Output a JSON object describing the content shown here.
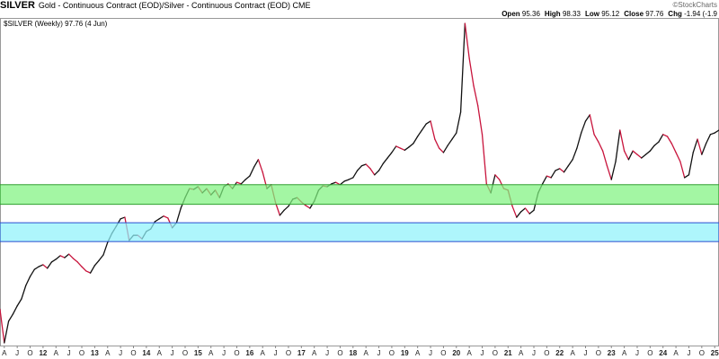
{
  "chart_data": {
    "type": "line",
    "title": "SILVER",
    "subtitle": "Gold - Continuous Contract (EOD)/Silver - Continuous Contract (EOD) CME",
    "brand": "©StockCharts",
    "stats": [
      {
        "label": "Open",
        "value": "95.36"
      },
      {
        "label": "High",
        "value": "98.33"
      },
      {
        "label": "Low",
        "value": "95.12"
      },
      {
        "label": "Close",
        "value": "97.76"
      },
      {
        "label": "Chg",
        "value": "-1.94 (-1.9"
      }
    ],
    "series_label": "$SILVER (Weekly) 97.76 (4 Jun)",
    "color_up": "#111111",
    "color_down": "#c8143c",
    "bands": [
      {
        "from": 79,
        "to": 84,
        "color": "#7ff27f",
        "border": "#2e9e2e"
      },
      {
        "from": 69.5,
        "to": 74.3,
        "color": "#8ff3fb",
        "border": "#2a4fd0"
      }
    ],
    "xlim": [
      "2011-03",
      "2025-02"
    ],
    "ylim": [
      43,
      126.5
    ],
    "x": [
      "2011-03",
      "2011-04",
      "2011-05",
      "2011-06",
      "2011-07",
      "2011-08",
      "2011-09",
      "2011-10",
      "2011-11",
      "2011-12",
      "2012-01",
      "2012-02",
      "2012-03",
      "2012-04",
      "2012-05",
      "2012-06",
      "2012-07",
      "2012-08",
      "2012-09",
      "2012-10",
      "2012-11",
      "2012-12",
      "2013-01",
      "2013-02",
      "2013-03",
      "2013-04",
      "2013-05",
      "2013-06",
      "2013-07",
      "2013-08",
      "2013-09",
      "2013-10",
      "2013-11",
      "2013-12",
      "2014-01",
      "2014-02",
      "2014-03",
      "2014-04",
      "2014-05",
      "2014-06",
      "2014-07",
      "2014-08",
      "2014-09",
      "2014-10",
      "2014-11",
      "2014-12",
      "2015-01",
      "2015-02",
      "2015-03",
      "2015-04",
      "2015-05",
      "2015-06",
      "2015-07",
      "2015-08",
      "2015-09",
      "2015-10",
      "2015-11",
      "2015-12",
      "2016-01",
      "2016-02",
      "2016-03",
      "2016-04",
      "2016-05",
      "2016-06",
      "2016-07",
      "2016-08",
      "2016-09",
      "2016-10",
      "2016-11",
      "2016-12",
      "2017-01",
      "2017-02",
      "2017-03",
      "2017-04",
      "2017-05",
      "2017-06",
      "2017-07",
      "2017-08",
      "2017-09",
      "2017-10",
      "2017-11",
      "2017-12",
      "2018-01",
      "2018-02",
      "2018-03",
      "2018-04",
      "2018-05",
      "2018-06",
      "2018-07",
      "2018-08",
      "2018-09",
      "2018-10",
      "2018-11",
      "2018-12",
      "2019-01",
      "2019-02",
      "2019-03",
      "2019-04",
      "2019-05",
      "2019-06",
      "2019-07",
      "2019-08",
      "2019-09",
      "2019-10",
      "2019-11",
      "2019-12",
      "2020-01",
      "2020-02",
      "2020-03",
      "2020-04",
      "2020-05",
      "2020-06",
      "2020-07",
      "2020-08",
      "2020-09",
      "2020-10",
      "2020-11",
      "2020-12",
      "2021-01",
      "2021-02",
      "2021-03",
      "2021-04",
      "2021-05",
      "2021-06",
      "2021-07",
      "2021-08",
      "2021-09",
      "2021-10",
      "2021-11",
      "2021-12",
      "2022-01",
      "2022-02",
      "2022-03",
      "2022-04",
      "2022-05",
      "2022-06",
      "2022-07",
      "2022-08",
      "2022-09",
      "2022-10",
      "2022-11",
      "2022-12",
      "2023-01",
      "2023-02",
      "2023-03",
      "2023-04",
      "2023-05",
      "2023-06",
      "2023-07",
      "2023-08",
      "2023-09",
      "2023-10",
      "2023-11",
      "2023-12",
      "2024-01",
      "2024-02",
      "2024-03",
      "2024-04",
      "2024-05",
      "2024-06",
      "2024-07",
      "2024-08",
      "2024-09",
      "2024-10",
      "2024-11",
      "2024-12",
      "2025-01",
      "2025-02"
    ],
    "series": [
      {
        "name": "$SILVER",
        "values": [
          52.2,
          43.7,
          49.2,
          51.0,
          53.1,
          54.9,
          58.3,
          60.6,
          62.4,
          63.1,
          63.6,
          62.7,
          64.3,
          65.0,
          65.9,
          65.4,
          66.3,
          65.2,
          64.3,
          63.1,
          62.0,
          61.5,
          63.4,
          64.7,
          66.1,
          69.3,
          71.6,
          73.4,
          75.3,
          75.7,
          69.8,
          71.1,
          71.1,
          70.2,
          72.1,
          72.7,
          74.6,
          75.3,
          76.0,
          75.5,
          73.0,
          74.3,
          78.0,
          80.7,
          83.0,
          82.8,
          83.5,
          81.9,
          83.0,
          81.4,
          82.6,
          80.7,
          83.5,
          84.2,
          83.0,
          84.6,
          84.2,
          85.3,
          86.2,
          88.5,
          90.4,
          87.2,
          83.0,
          84.0,
          79.4,
          76.2,
          77.5,
          78.5,
          80.3,
          80.7,
          79.6,
          78.7,
          78.0,
          79.8,
          82.6,
          83.7,
          83.5,
          84.2,
          84.6,
          84.0,
          84.9,
          85.3,
          85.8,
          87.6,
          88.8,
          89.2,
          88.1,
          86.5,
          87.6,
          89.4,
          90.8,
          92.2,
          93.8,
          93.3,
          92.8,
          93.6,
          94.5,
          96.3,
          97.9,
          99.5,
          100.2,
          95.6,
          93.3,
          92.2,
          94.0,
          95.6,
          97.2,
          102.5,
          125.1,
          116.2,
          109.3,
          104.1,
          96.8,
          84.2,
          81.9,
          86.5,
          85.3,
          83.0,
          82.6,
          78.5,
          75.7,
          77.1,
          78.0,
          76.6,
          77.5,
          81.9,
          84.2,
          86.2,
          85.8,
          87.6,
          88.1,
          87.2,
          88.8,
          90.4,
          93.3,
          97.2,
          100.2,
          101.8,
          96.8,
          94.9,
          92.6,
          88.8,
          85.3,
          89.9,
          97.9,
          92.6,
          90.4,
          92.6,
          91.7,
          90.8,
          91.7,
          92.6,
          94.0,
          94.9,
          96.8,
          96.3,
          94.5,
          92.2,
          89.9,
          85.8,
          86.5,
          92.2,
          95.6,
          91.7,
          94.5,
          96.8,
          97.2,
          97.9
        ]
      }
    ],
    "xticks": [
      {
        "value": "2011-04",
        "label": "A"
      },
      {
        "value": "2011-07",
        "label": "J"
      },
      {
        "value": "2011-10",
        "label": "O"
      },
      {
        "value": "2012-01",
        "label": "12"
      },
      {
        "value": "2012-04",
        "label": "A"
      },
      {
        "value": "2012-07",
        "label": "J"
      },
      {
        "value": "2012-10",
        "label": "O"
      },
      {
        "value": "2013-01",
        "label": "13"
      },
      {
        "value": "2013-04",
        "label": "A"
      },
      {
        "value": "2013-07",
        "label": "J"
      },
      {
        "value": "2013-10",
        "label": "O"
      },
      {
        "value": "2014-01",
        "label": "14"
      },
      {
        "value": "2014-04",
        "label": "A"
      },
      {
        "value": "2014-07",
        "label": "J"
      },
      {
        "value": "2014-10",
        "label": "O"
      },
      {
        "value": "2015-01",
        "label": "15"
      },
      {
        "value": "2015-04",
        "label": "A"
      },
      {
        "value": "2015-07",
        "label": "J"
      },
      {
        "value": "2015-10",
        "label": "O"
      },
      {
        "value": "2016-01",
        "label": "16"
      },
      {
        "value": "2016-04",
        "label": "A"
      },
      {
        "value": "2016-07",
        "label": "J"
      },
      {
        "value": "2016-10",
        "label": "O"
      },
      {
        "value": "2017-01",
        "label": "17"
      },
      {
        "value": "2017-04",
        "label": "A"
      },
      {
        "value": "2017-07",
        "label": "J"
      },
      {
        "value": "2017-10",
        "label": "O"
      },
      {
        "value": "2018-01",
        "label": "18"
      },
      {
        "value": "2018-04",
        "label": "A"
      },
      {
        "value": "2018-07",
        "label": "J"
      },
      {
        "value": "2018-10",
        "label": "O"
      },
      {
        "value": "2019-01",
        "label": "19"
      },
      {
        "value": "2019-04",
        "label": "A"
      },
      {
        "value": "2019-07",
        "label": "J"
      },
      {
        "value": "2019-10",
        "label": "O"
      },
      {
        "value": "2020-01",
        "label": "20"
      },
      {
        "value": "2020-04",
        "label": "A"
      },
      {
        "value": "2020-07",
        "label": "J"
      },
      {
        "value": "2020-10",
        "label": "O"
      },
      {
        "value": "2021-01",
        "label": "21"
      },
      {
        "value": "2021-04",
        "label": "A"
      },
      {
        "value": "2021-07",
        "label": "J"
      },
      {
        "value": "2021-10",
        "label": "O"
      },
      {
        "value": "2022-01",
        "label": "22"
      },
      {
        "value": "2022-04",
        "label": "A"
      },
      {
        "value": "2022-07",
        "label": "J"
      },
      {
        "value": "2022-10",
        "label": "O"
      },
      {
        "value": "2023-01",
        "label": "23"
      },
      {
        "value": "2023-04",
        "label": "A"
      },
      {
        "value": "2023-07",
        "label": "J"
      },
      {
        "value": "2023-10",
        "label": "O"
      },
      {
        "value": "2024-01",
        "label": "24"
      },
      {
        "value": "2024-04",
        "label": "A"
      },
      {
        "value": "2024-07",
        "label": "J"
      },
      {
        "value": "2024-10",
        "label": "O"
      },
      {
        "value": "2025-01",
        "label": "25"
      }
    ]
  }
}
